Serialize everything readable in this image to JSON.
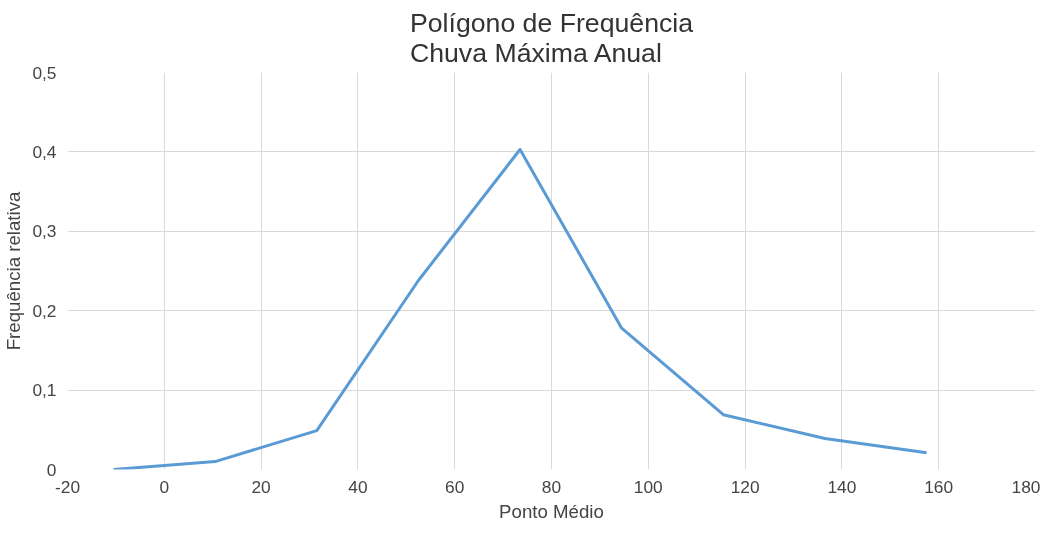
{
  "chart_data": {
    "type": "line",
    "title": "Polígono de Frequência\nChuva Máxima Anual",
    "xlabel": "Ponto Médio",
    "ylabel": "Frequência relativa",
    "x": [
      -10.5,
      10.5,
      31.5,
      52.5,
      73.5,
      94.5,
      115.5,
      136.5,
      157.5
    ],
    "series": [
      {
        "color": "#5b9bd5",
        "values": [
          0,
          0.01,
          0.049,
          0.238,
          0.403,
          0.178,
          0.069,
          0.039,
          0.021
        ]
      }
    ],
    "xlim": [
      -20,
      180
    ],
    "xticks": [
      -20,
      0,
      20,
      40,
      60,
      80,
      100,
      120,
      140,
      160,
      180
    ],
    "ylim": [
      0,
      0.5
    ],
    "yticks": [
      0,
      {
        "value": 0.1,
        "label": "0,1"
      },
      {
        "value": 0.2,
        "label": "0,2"
      },
      {
        "value": 0.3,
        "label": "0,3"
      },
      {
        "value": 0.4,
        "label": "0,4"
      },
      {
        "value": 0.5,
        "label": "0,5"
      }
    ],
    "grid": true,
    "marker": "none",
    "line_style": "solid"
  }
}
